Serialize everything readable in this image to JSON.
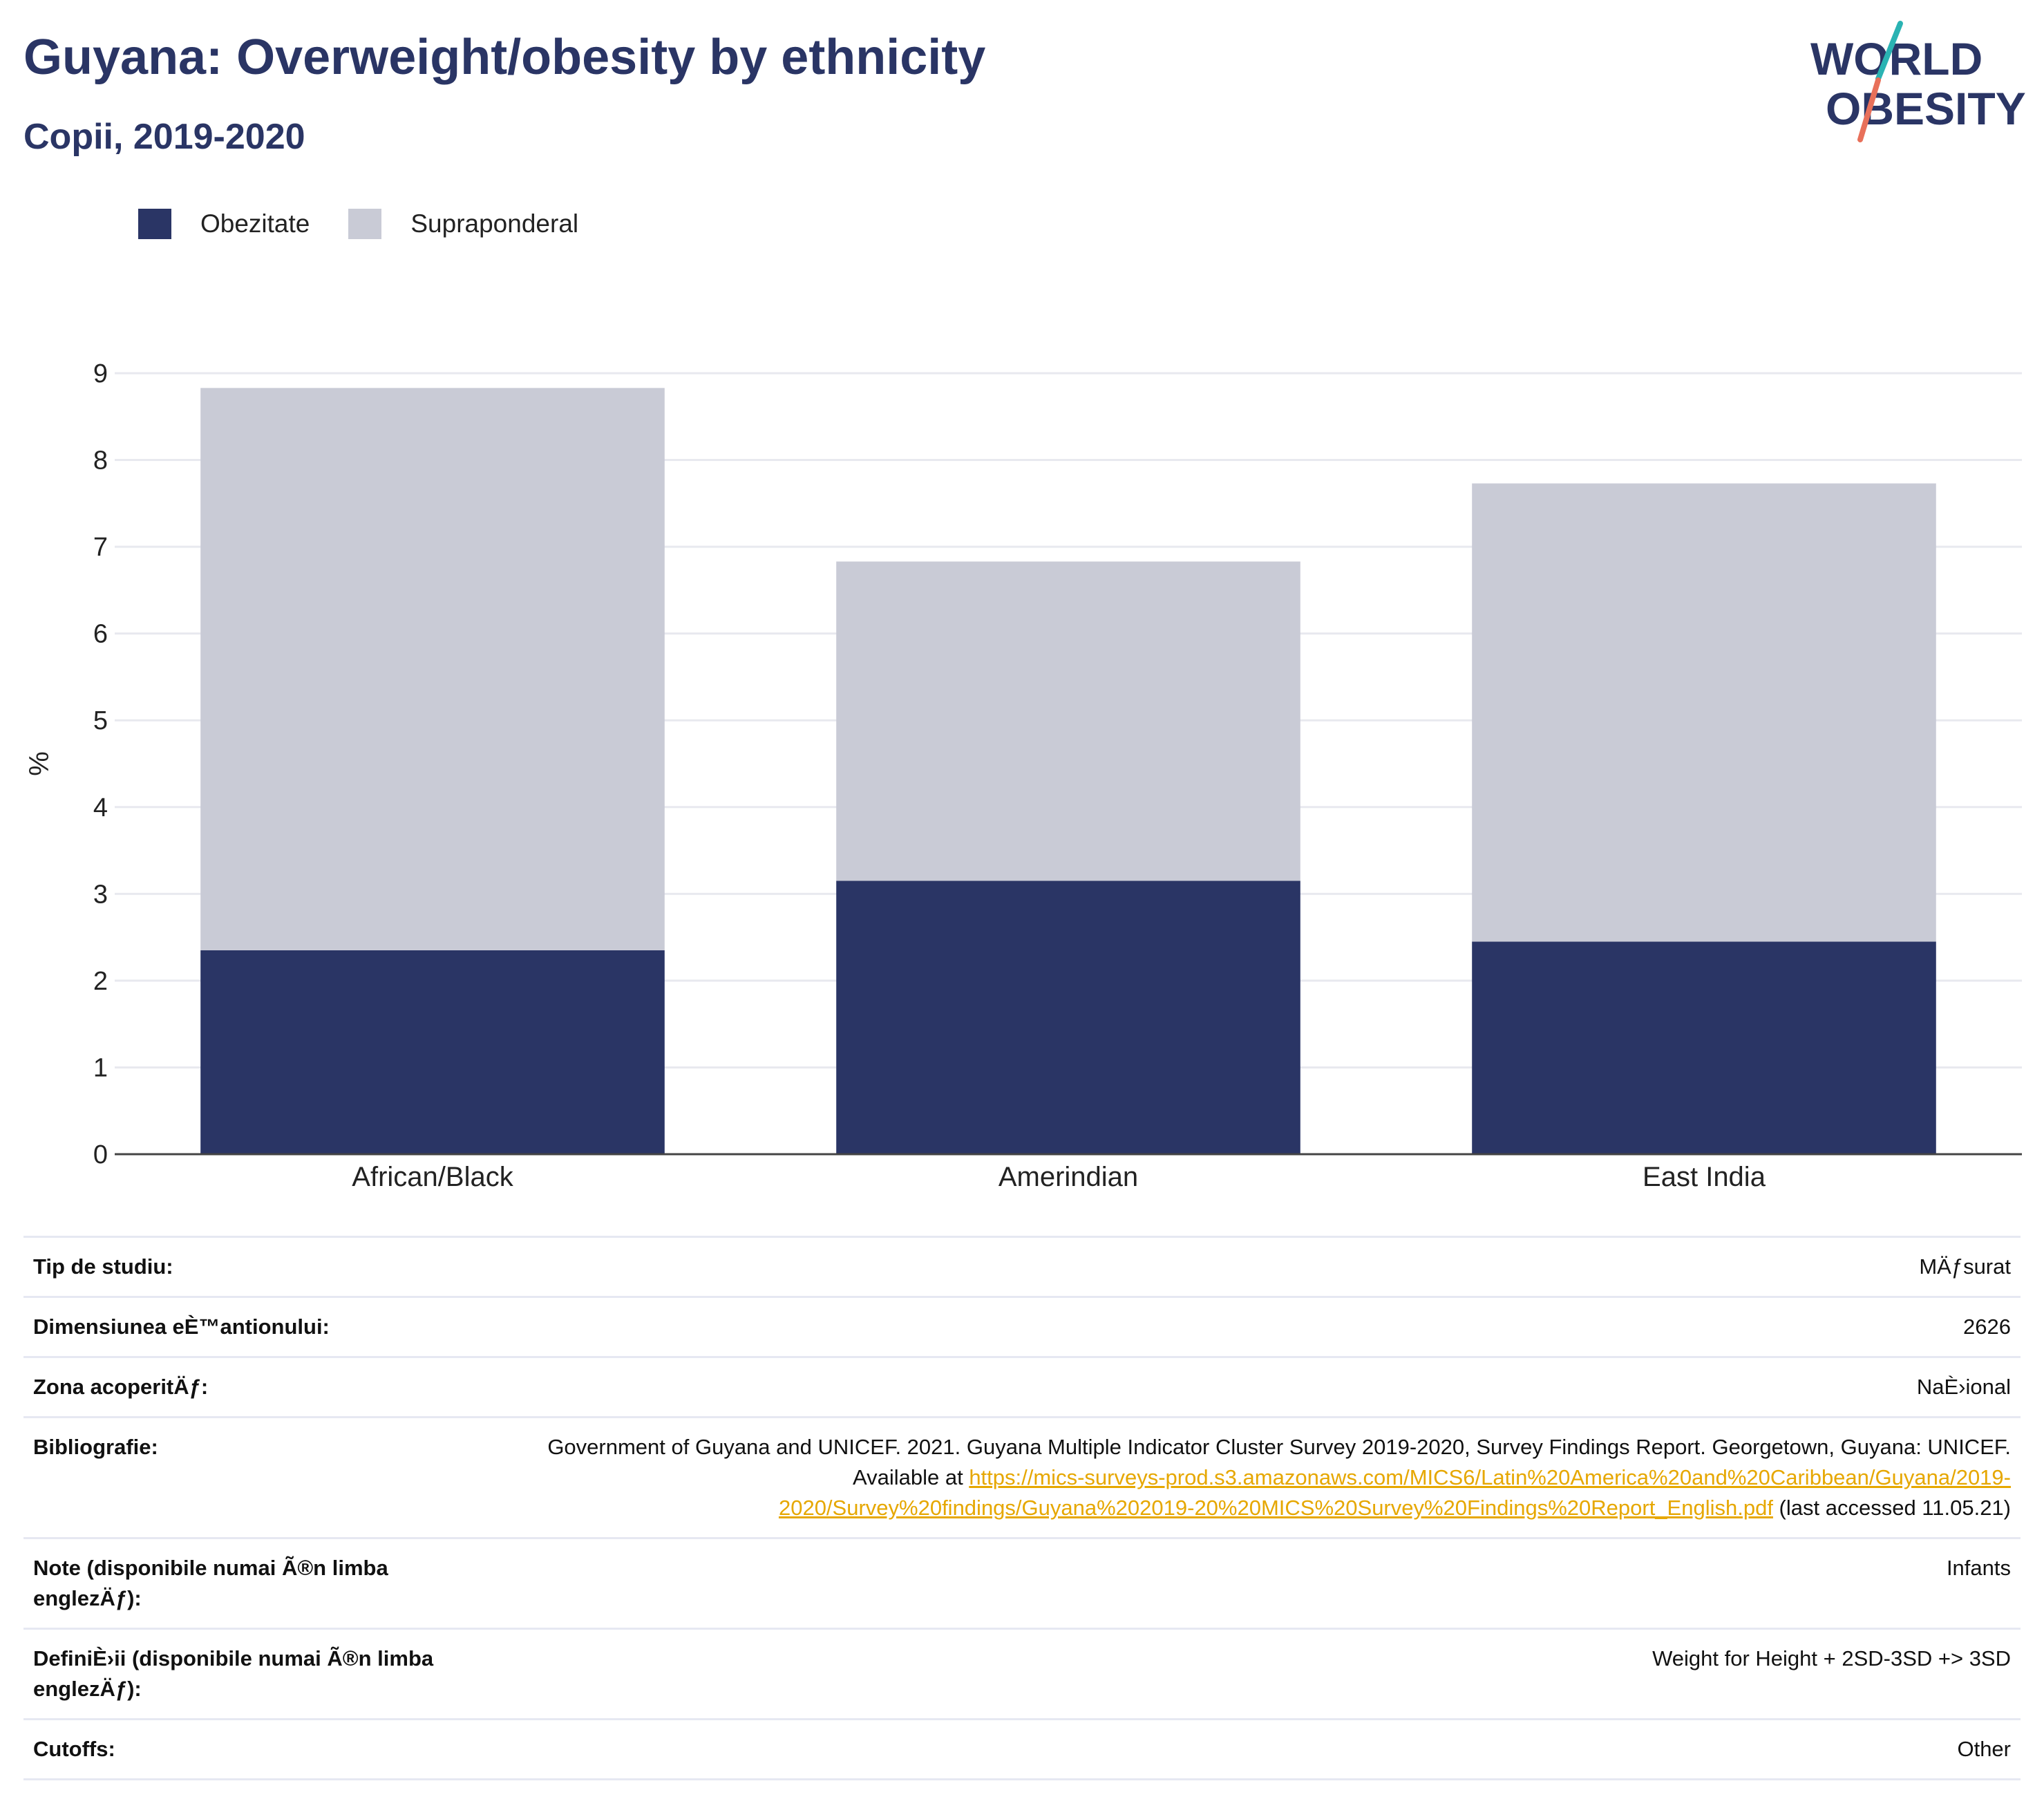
{
  "header": {
    "title": "Guyana: Overweight/obesity by ethnicity",
    "subtitle": "Copii, 2019-2020",
    "logo_line1": "WORLD",
    "logo_line2": "OBESITY"
  },
  "legend": {
    "items": [
      {
        "label": "Obezitate",
        "color": "#2a3565"
      },
      {
        "label": "Supraponderal",
        "color": "#c9cbd6"
      }
    ]
  },
  "chart_data": {
    "type": "bar",
    "stacked": true,
    "categories": [
      "African/Black",
      "Amerindian",
      "East India"
    ],
    "series": [
      {
        "name": "Obezitate",
        "values": [
          2.35,
          3.15,
          2.45
        ],
        "color": "#2a3565"
      },
      {
        "name": "Supraponderal",
        "values": [
          6.48,
          3.68,
          5.28
        ],
        "color": "#c9cbd6"
      }
    ],
    "ylabel": "%",
    "ylim": [
      0,
      9
    ],
    "yticks": [
      0,
      1,
      2,
      3,
      4,
      5,
      6,
      7,
      8,
      9
    ],
    "grid": true,
    "legend_position": "top-left"
  },
  "meta": {
    "rows": [
      {
        "key": "Tip de studiu:",
        "value": "MÄƒsurat"
      },
      {
        "key": "Dimensiunea eÈ™antionului:",
        "value": "2626"
      },
      {
        "key": "Zona acoperitÄƒ:",
        "value": "NaÈ›ional"
      },
      {
        "key": "Bibliografie:",
        "value": "Government of Guyana and UNICEF. 2021. Guyana Multiple Indicator Cluster Survey 2019-2020, Survey Findings Report. Georgetown, Guyana: UNICEF. Available at ",
        "link": "https://mics-surveys-prod.s3.amazonaws.com/MICS6/Latin%20America%20and%20Caribbean/Guyana/2019-2020/Survey%20findings/Guyana%202019-20%20MICS%20Survey%20Findings%20Report_English.pdf",
        "suffix": " (last accessed 11.05.21)"
      },
      {
        "key": "Note (disponibile numai Ã®n limba englezÄƒ):",
        "value": "Infants"
      },
      {
        "key": "DefiniÈ›ii (disponibile numai Ã®n limba englezÄƒ):",
        "value": "Weight for Height + 2SD-3SD +> 3SD"
      },
      {
        "key": "Cutoffs:",
        "value": "Other"
      }
    ]
  }
}
